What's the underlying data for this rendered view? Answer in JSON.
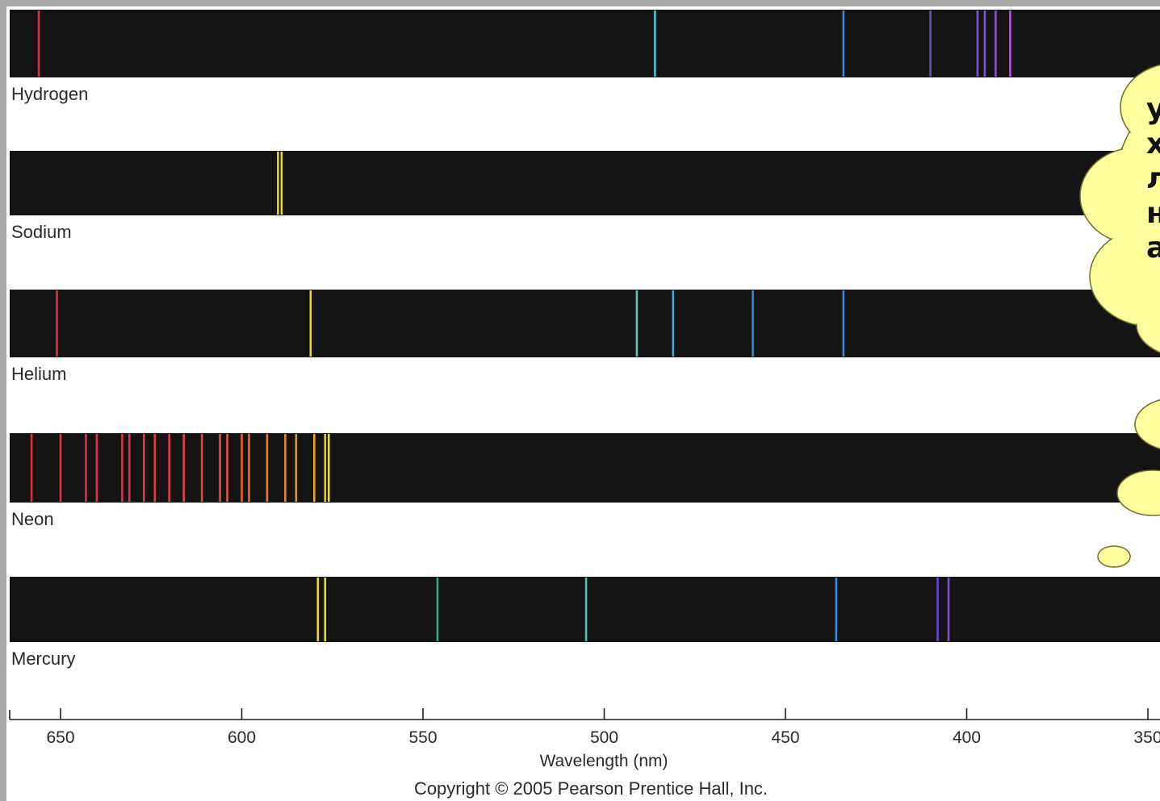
{
  "chart_data": {
    "type": "emission-spectrum",
    "title": "",
    "xlabel": "Wavelength (nm)",
    "ylabel": "",
    "xlim": [
      664,
      347
    ],
    "x_ticks": [
      650,
      600,
      550,
      500,
      450,
      400,
      350
    ],
    "x_tick_labels": [
      "650",
      "600",
      "550",
      "500",
      "450",
      "400",
      "350"
    ],
    "series": [
      {
        "name": "Hydrogen",
        "lines": [
          {
            "x": 656,
            "color": "#e8323c"
          },
          {
            "x": 486,
            "color": "#5fc8d2"
          },
          {
            "x": 434,
            "color": "#3f8ee6"
          },
          {
            "x": 410,
            "color": "#6a4fd8"
          },
          {
            "x": 397,
            "color": "#8a52e0"
          },
          {
            "x": 395,
            "color": "#8a52e0"
          },
          {
            "x": 392,
            "color": "#9358de"
          },
          {
            "x": 388,
            "color": "#b15fd8"
          }
        ]
      },
      {
        "name": "Sodium",
        "lines": [
          {
            "x": 590,
            "color": "#f2e43a"
          },
          {
            "x": 589,
            "color": "#f2e43a"
          }
        ]
      },
      {
        "name": "Helium",
        "lines": [
          {
            "x": 651,
            "color": "#e8323c"
          },
          {
            "x": 581,
            "color": "#f2e43a"
          },
          {
            "x": 491,
            "color": "#63c6c4"
          },
          {
            "x": 481,
            "color": "#4aaee0"
          },
          {
            "x": 459,
            "color": "#3f90e6"
          },
          {
            "x": 434,
            "color": "#3f8ee6"
          }
        ]
      },
      {
        "name": "Neon",
        "lines": [
          {
            "x": 658,
            "color": "#e8303e"
          },
          {
            "x": 650,
            "color": "#e83440"
          },
          {
            "x": 643,
            "color": "#e83446"
          },
          {
            "x": 640,
            "color": "#e8344a"
          },
          {
            "x": 633,
            "color": "#e8364e"
          },
          {
            "x": 631,
            "color": "#e8364e"
          },
          {
            "x": 627,
            "color": "#ea3a4c"
          },
          {
            "x": 624,
            "color": "#ea3c4a"
          },
          {
            "x": 620,
            "color": "#ea4048"
          },
          {
            "x": 616,
            "color": "#ec4646"
          },
          {
            "x": 611,
            "color": "#ee4e42"
          },
          {
            "x": 606,
            "color": "#ef5640"
          },
          {
            "x": 604,
            "color": "#f05c3e"
          },
          {
            "x": 600,
            "color": "#f2663a"
          },
          {
            "x": 598,
            "color": "#f27038"
          },
          {
            "x": 593,
            "color": "#f47e34"
          },
          {
            "x": 588,
            "color": "#f48c30"
          },
          {
            "x": 585,
            "color": "#f4982e"
          },
          {
            "x": 580,
            "color": "#f5ae2c"
          },
          {
            "x": 577,
            "color": "#f4d22a"
          },
          {
            "x": 576,
            "color": "#f2e43a"
          }
        ]
      },
      {
        "name": "Mercury",
        "lines": [
          {
            "x": 579,
            "color": "#f2e43a"
          },
          {
            "x": 577,
            "color": "#f2e43a"
          },
          {
            "x": 546,
            "color": "#3fb082"
          },
          {
            "x": 505,
            "color": "#5ec6cc"
          },
          {
            "x": 436,
            "color": "#3f8ee6"
          },
          {
            "x": 408,
            "color": "#7048d8"
          },
          {
            "x": 405,
            "color": "#8a4ee0"
          }
        ]
      }
    ],
    "footer": "Copyright © 2005 Pearson Prentice Hall, Inc."
  },
  "callout": {
    "lines": [
      "у",
      "х",
      "л",
      "н",
      "а"
    ],
    "fill": "#ffff9e",
    "stroke": "#6e6e2a"
  },
  "colors": {
    "strip": "#141414",
    "page": "#ffffff",
    "frame": "#a9a9a9",
    "text": "#2a2a2a"
  }
}
